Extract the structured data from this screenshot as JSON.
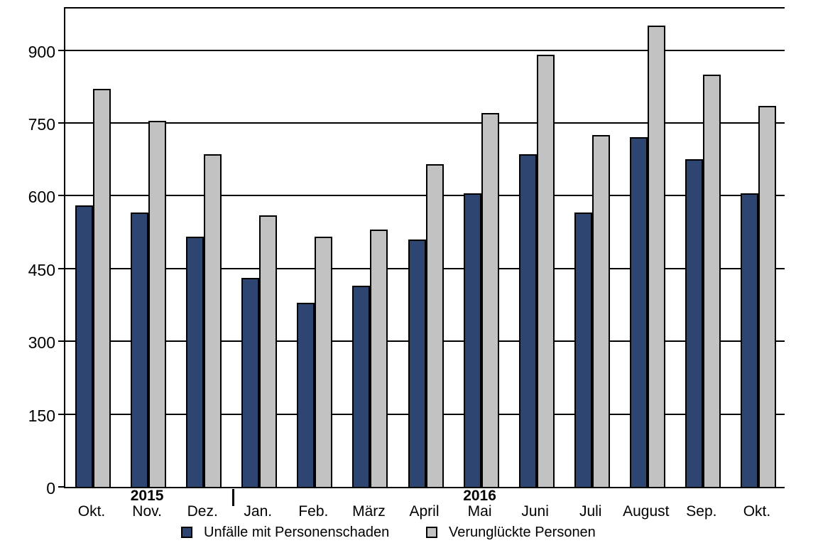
{
  "chart_data": {
    "type": "bar",
    "title": "",
    "categories": [
      "Okt.",
      "Nov.",
      "Dez.",
      "Jan.",
      "Feb.",
      "März",
      "April",
      "Mai",
      "Juni",
      "Juli",
      "August",
      "Sep.",
      "Okt."
    ],
    "year_labels": [
      {
        "label": "2015",
        "category_index": 1
      },
      {
        "label": "2016",
        "category_index": 7
      }
    ],
    "series": [
      {
        "name": "Unfälle mit Personenschaden",
        "color": "#2e4471",
        "values": [
          580,
          565,
          515,
          430,
          380,
          415,
          510,
          605,
          685,
          565,
          720,
          675,
          605
        ]
      },
      {
        "name": "Verunglückte Personen",
        "color": "#c2c2c2",
        "values": [
          820,
          755,
          685,
          560,
          515,
          530,
          665,
          770,
          890,
          725,
          950,
          850,
          785
        ]
      }
    ],
    "y_ticks": [
      0,
      150,
      300,
      450,
      600,
      750,
      900
    ],
    "ylim": [
      0,
      990
    ],
    "xlabel": "",
    "ylabel": "",
    "grid": true,
    "gridline_color": "#000000",
    "legend_position": "bottom"
  }
}
